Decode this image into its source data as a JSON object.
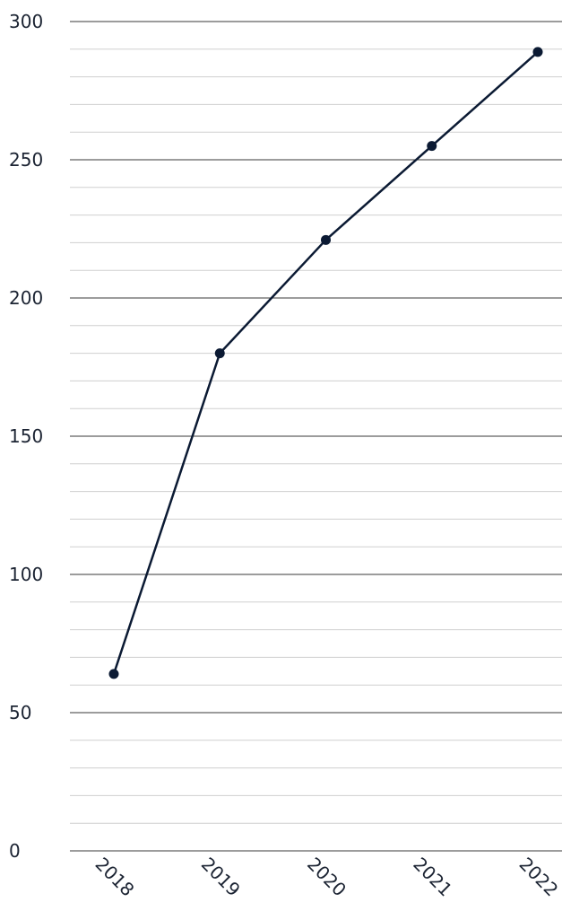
{
  "chart_data": {
    "type": "line",
    "title": "",
    "xlabel": "",
    "ylabel": "",
    "x": [
      "2018",
      "2019",
      "2020",
      "2021",
      "2022"
    ],
    "series": [
      {
        "values": [
          64,
          180,
          221,
          255,
          289
        ]
      }
    ],
    "ylim": [
      0,
      300
    ],
    "y_ticks": [
      0,
      50,
      100,
      150,
      200,
      250,
      300
    ],
    "y_tick_labels": [
      "0",
      "50",
      "100",
      "150",
      "200",
      "250",
      "300"
    ],
    "minor_grid_step": 10,
    "grid": true,
    "legend": "none",
    "x_tick_rotation_deg": 45,
    "colors": {
      "line": "#0b1a33",
      "marker": "#0b1a33",
      "text": "#1c2433"
    }
  }
}
